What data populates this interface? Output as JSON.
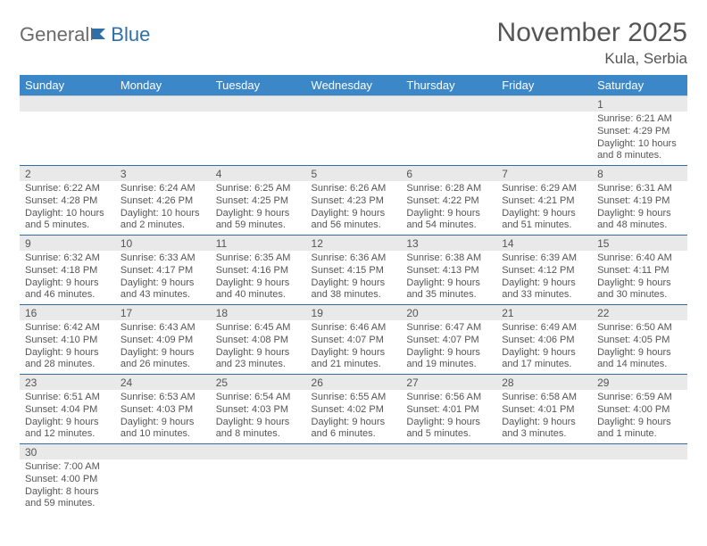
{
  "header": {
    "logo_text1": "General",
    "logo_text2": "Blue",
    "month_title": "November 2025",
    "location": "Kula, Serbia"
  },
  "colors": {
    "header_bg": "#3b87c8",
    "header_fg": "#ffffff",
    "daterow_bg": "#e9e9e9",
    "accent_border": "#2f6fa8",
    "text": "#555555"
  },
  "day_labels": [
    "Sunday",
    "Monday",
    "Tuesday",
    "Wednesday",
    "Thursday",
    "Friday",
    "Saturday"
  ],
  "weeks": [
    {
      "dates": [
        "",
        "",
        "",
        "",
        "",
        "",
        "1"
      ],
      "cells": [
        null,
        null,
        null,
        null,
        null,
        null,
        {
          "sunrise": "Sunrise: 6:21 AM",
          "sunset": "Sunset: 4:29 PM",
          "daylight": "Daylight: 10 hours and 8 minutes."
        }
      ]
    },
    {
      "dates": [
        "2",
        "3",
        "4",
        "5",
        "6",
        "7",
        "8"
      ],
      "cells": [
        {
          "sunrise": "Sunrise: 6:22 AM",
          "sunset": "Sunset: 4:28 PM",
          "daylight": "Daylight: 10 hours and 5 minutes."
        },
        {
          "sunrise": "Sunrise: 6:24 AM",
          "sunset": "Sunset: 4:26 PM",
          "daylight": "Daylight: 10 hours and 2 minutes."
        },
        {
          "sunrise": "Sunrise: 6:25 AM",
          "sunset": "Sunset: 4:25 PM",
          "daylight": "Daylight: 9 hours and 59 minutes."
        },
        {
          "sunrise": "Sunrise: 6:26 AM",
          "sunset": "Sunset: 4:23 PM",
          "daylight": "Daylight: 9 hours and 56 minutes."
        },
        {
          "sunrise": "Sunrise: 6:28 AM",
          "sunset": "Sunset: 4:22 PM",
          "daylight": "Daylight: 9 hours and 54 minutes."
        },
        {
          "sunrise": "Sunrise: 6:29 AM",
          "sunset": "Sunset: 4:21 PM",
          "daylight": "Daylight: 9 hours and 51 minutes."
        },
        {
          "sunrise": "Sunrise: 6:31 AM",
          "sunset": "Sunset: 4:19 PM",
          "daylight": "Daylight: 9 hours and 48 minutes."
        }
      ]
    },
    {
      "dates": [
        "9",
        "10",
        "11",
        "12",
        "13",
        "14",
        "15"
      ],
      "cells": [
        {
          "sunrise": "Sunrise: 6:32 AM",
          "sunset": "Sunset: 4:18 PM",
          "daylight": "Daylight: 9 hours and 46 minutes."
        },
        {
          "sunrise": "Sunrise: 6:33 AM",
          "sunset": "Sunset: 4:17 PM",
          "daylight": "Daylight: 9 hours and 43 minutes."
        },
        {
          "sunrise": "Sunrise: 6:35 AM",
          "sunset": "Sunset: 4:16 PM",
          "daylight": "Daylight: 9 hours and 40 minutes."
        },
        {
          "sunrise": "Sunrise: 6:36 AM",
          "sunset": "Sunset: 4:15 PM",
          "daylight": "Daylight: 9 hours and 38 minutes."
        },
        {
          "sunrise": "Sunrise: 6:38 AM",
          "sunset": "Sunset: 4:13 PM",
          "daylight": "Daylight: 9 hours and 35 minutes."
        },
        {
          "sunrise": "Sunrise: 6:39 AM",
          "sunset": "Sunset: 4:12 PM",
          "daylight": "Daylight: 9 hours and 33 minutes."
        },
        {
          "sunrise": "Sunrise: 6:40 AM",
          "sunset": "Sunset: 4:11 PM",
          "daylight": "Daylight: 9 hours and 30 minutes."
        }
      ]
    },
    {
      "dates": [
        "16",
        "17",
        "18",
        "19",
        "20",
        "21",
        "22"
      ],
      "cells": [
        {
          "sunrise": "Sunrise: 6:42 AM",
          "sunset": "Sunset: 4:10 PM",
          "daylight": "Daylight: 9 hours and 28 minutes."
        },
        {
          "sunrise": "Sunrise: 6:43 AM",
          "sunset": "Sunset: 4:09 PM",
          "daylight": "Daylight: 9 hours and 26 minutes."
        },
        {
          "sunrise": "Sunrise: 6:45 AM",
          "sunset": "Sunset: 4:08 PM",
          "daylight": "Daylight: 9 hours and 23 minutes."
        },
        {
          "sunrise": "Sunrise: 6:46 AM",
          "sunset": "Sunset: 4:07 PM",
          "daylight": "Daylight: 9 hours and 21 minutes."
        },
        {
          "sunrise": "Sunrise: 6:47 AM",
          "sunset": "Sunset: 4:07 PM",
          "daylight": "Daylight: 9 hours and 19 minutes."
        },
        {
          "sunrise": "Sunrise: 6:49 AM",
          "sunset": "Sunset: 4:06 PM",
          "daylight": "Daylight: 9 hours and 17 minutes."
        },
        {
          "sunrise": "Sunrise: 6:50 AM",
          "sunset": "Sunset: 4:05 PM",
          "daylight": "Daylight: 9 hours and 14 minutes."
        }
      ]
    },
    {
      "dates": [
        "23",
        "24",
        "25",
        "26",
        "27",
        "28",
        "29"
      ],
      "cells": [
        {
          "sunrise": "Sunrise: 6:51 AM",
          "sunset": "Sunset: 4:04 PM",
          "daylight": "Daylight: 9 hours and 12 minutes."
        },
        {
          "sunrise": "Sunrise: 6:53 AM",
          "sunset": "Sunset: 4:03 PM",
          "daylight": "Daylight: 9 hours and 10 minutes."
        },
        {
          "sunrise": "Sunrise: 6:54 AM",
          "sunset": "Sunset: 4:03 PM",
          "daylight": "Daylight: 9 hours and 8 minutes."
        },
        {
          "sunrise": "Sunrise: 6:55 AM",
          "sunset": "Sunset: 4:02 PM",
          "daylight": "Daylight: 9 hours and 6 minutes."
        },
        {
          "sunrise": "Sunrise: 6:56 AM",
          "sunset": "Sunset: 4:01 PM",
          "daylight": "Daylight: 9 hours and 5 minutes."
        },
        {
          "sunrise": "Sunrise: 6:58 AM",
          "sunset": "Sunset: 4:01 PM",
          "daylight": "Daylight: 9 hours and 3 minutes."
        },
        {
          "sunrise": "Sunrise: 6:59 AM",
          "sunset": "Sunset: 4:00 PM",
          "daylight": "Daylight: 9 hours and 1 minute."
        }
      ]
    },
    {
      "dates": [
        "30",
        "",
        "",
        "",
        "",
        "",
        ""
      ],
      "cells": [
        {
          "sunrise": "Sunrise: 7:00 AM",
          "sunset": "Sunset: 4:00 PM",
          "daylight": "Daylight: 8 hours and 59 minutes."
        },
        null,
        null,
        null,
        null,
        null,
        null
      ]
    }
  ]
}
